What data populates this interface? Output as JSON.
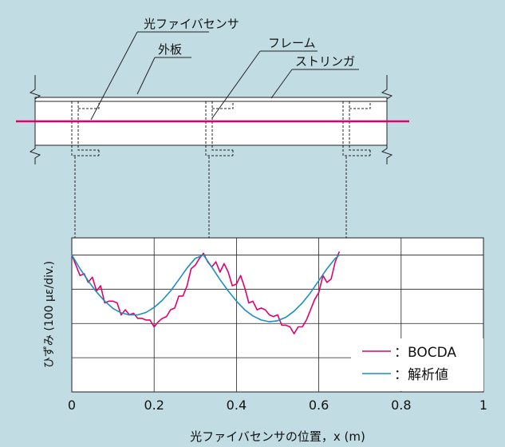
{
  "colors": {
    "background": "#c1dce3",
    "bocda": "#e0006e",
    "analysis": "#1a8fc4",
    "fiber": "#e0006e"
  },
  "diagram": {
    "label_fiber": "光ファイバセンサ",
    "label_skin": "外板",
    "label_frame": "フレーム",
    "label_stringer": "ストリンガ"
  },
  "chart_data": {
    "type": "line",
    "title": "",
    "xlabel": "光ファイバセンサの位置，x (m)",
    "ylabel": "ひずみ (100 με/div.)",
    "xlim": [
      0,
      1
    ],
    "ylim": [
      -4,
      0.5
    ],
    "xticks": [
      "0",
      "0.2",
      "0.4",
      "0.6",
      "0.8",
      "1"
    ],
    "grid": true,
    "legend_position": "bottom-right",
    "series": [
      {
        "name": "：BOCDA",
        "color": "#e0006e",
        "x": [
          0.0,
          0.01,
          0.02,
          0.03,
          0.04,
          0.05,
          0.06,
          0.07,
          0.08,
          0.09,
          0.1,
          0.11,
          0.12,
          0.13,
          0.14,
          0.15,
          0.16,
          0.17,
          0.18,
          0.19,
          0.2,
          0.21,
          0.22,
          0.23,
          0.24,
          0.25,
          0.26,
          0.27,
          0.28,
          0.29,
          0.3,
          0.31,
          0.32,
          0.33,
          0.34,
          0.35,
          0.36,
          0.37,
          0.38,
          0.39,
          0.4,
          0.41,
          0.42,
          0.43,
          0.44,
          0.45,
          0.46,
          0.47,
          0.48,
          0.49,
          0.5,
          0.51,
          0.52,
          0.53,
          0.54,
          0.55,
          0.56,
          0.57,
          0.58,
          0.59,
          0.6,
          0.61,
          0.62,
          0.63,
          0.64,
          0.65
        ],
        "y": [
          0.0,
          -0.3,
          -0.6,
          -0.55,
          -0.8,
          -0.65,
          -1.05,
          -0.9,
          -1.4,
          -1.35,
          -1.35,
          -1.4,
          -1.75,
          -1.6,
          -1.75,
          -1.7,
          -1.85,
          -1.85,
          -1.9,
          -1.9,
          -2.1,
          -1.95,
          -1.85,
          -1.8,
          -1.6,
          -1.55,
          -1.2,
          -1.2,
          -0.9,
          -0.4,
          -0.3,
          -0.1,
          0.05,
          -0.2,
          -0.35,
          -0.2,
          -0.5,
          -0.25,
          -0.5,
          -0.9,
          -0.85,
          -0.6,
          -0.95,
          -1.4,
          -1.35,
          -1.6,
          -1.55,
          -1.6,
          -1.75,
          -1.8,
          -1.75,
          -2.05,
          -2.05,
          -2.1,
          -2.3,
          -2.1,
          -2.1,
          -1.9,
          -1.6,
          -1.3,
          -1.1,
          -0.6,
          -0.8,
          -0.7,
          -0.2,
          0.1
        ]
      },
      {
        "name": "：解析値",
        "color": "#1a8fc4",
        "x": [
          0.0,
          0.02,
          0.04,
          0.06,
          0.08,
          0.1,
          0.12,
          0.14,
          0.16,
          0.18,
          0.2,
          0.22,
          0.24,
          0.26,
          0.28,
          0.3,
          0.32,
          0.34,
          0.36,
          0.38,
          0.4,
          0.42,
          0.44,
          0.46,
          0.48,
          0.5,
          0.52,
          0.54,
          0.56,
          0.58,
          0.6,
          0.62,
          0.64,
          0.65
        ],
        "y": [
          0.0,
          -0.4,
          -0.76,
          -1.08,
          -1.35,
          -1.56,
          -1.69,
          -1.75,
          -1.75,
          -1.68,
          -1.53,
          -1.32,
          -1.05,
          -0.72,
          -0.38,
          -0.1,
          0.0,
          -0.35,
          -0.72,
          -1.05,
          -1.35,
          -1.6,
          -1.78,
          -1.9,
          -1.95,
          -1.92,
          -1.82,
          -1.64,
          -1.4,
          -1.1,
          -0.75,
          -0.4,
          -0.1,
          0.0
        ]
      }
    ]
  }
}
